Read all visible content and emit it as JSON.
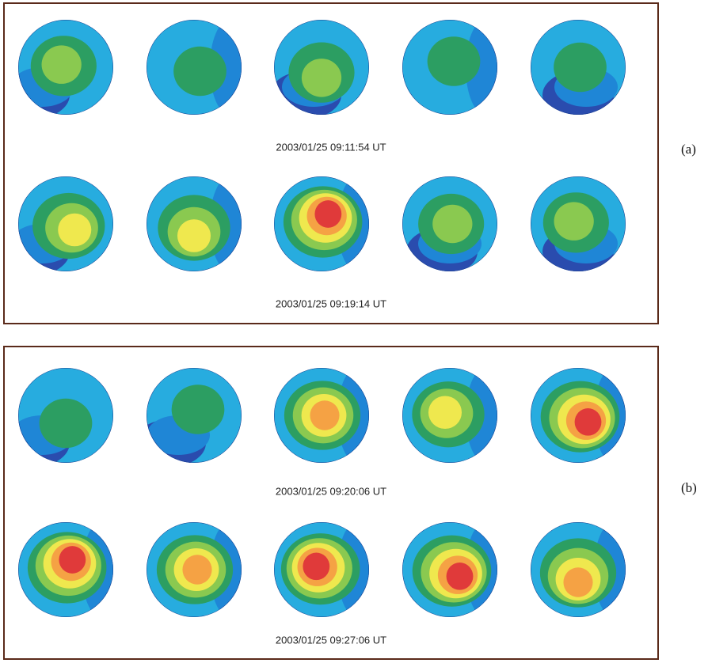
{
  "panels": [
    {
      "label": "(a)",
      "timestamps": [
        "2003/01/25 09:11:54 UT",
        "2003/01/25 09:19:14 UT"
      ]
    },
    {
      "label": "(b)",
      "timestamps": [
        "2003/01/25 09:20:06 UT",
        "2003/01/25 09:27:06 UT"
      ]
    }
  ]
}
